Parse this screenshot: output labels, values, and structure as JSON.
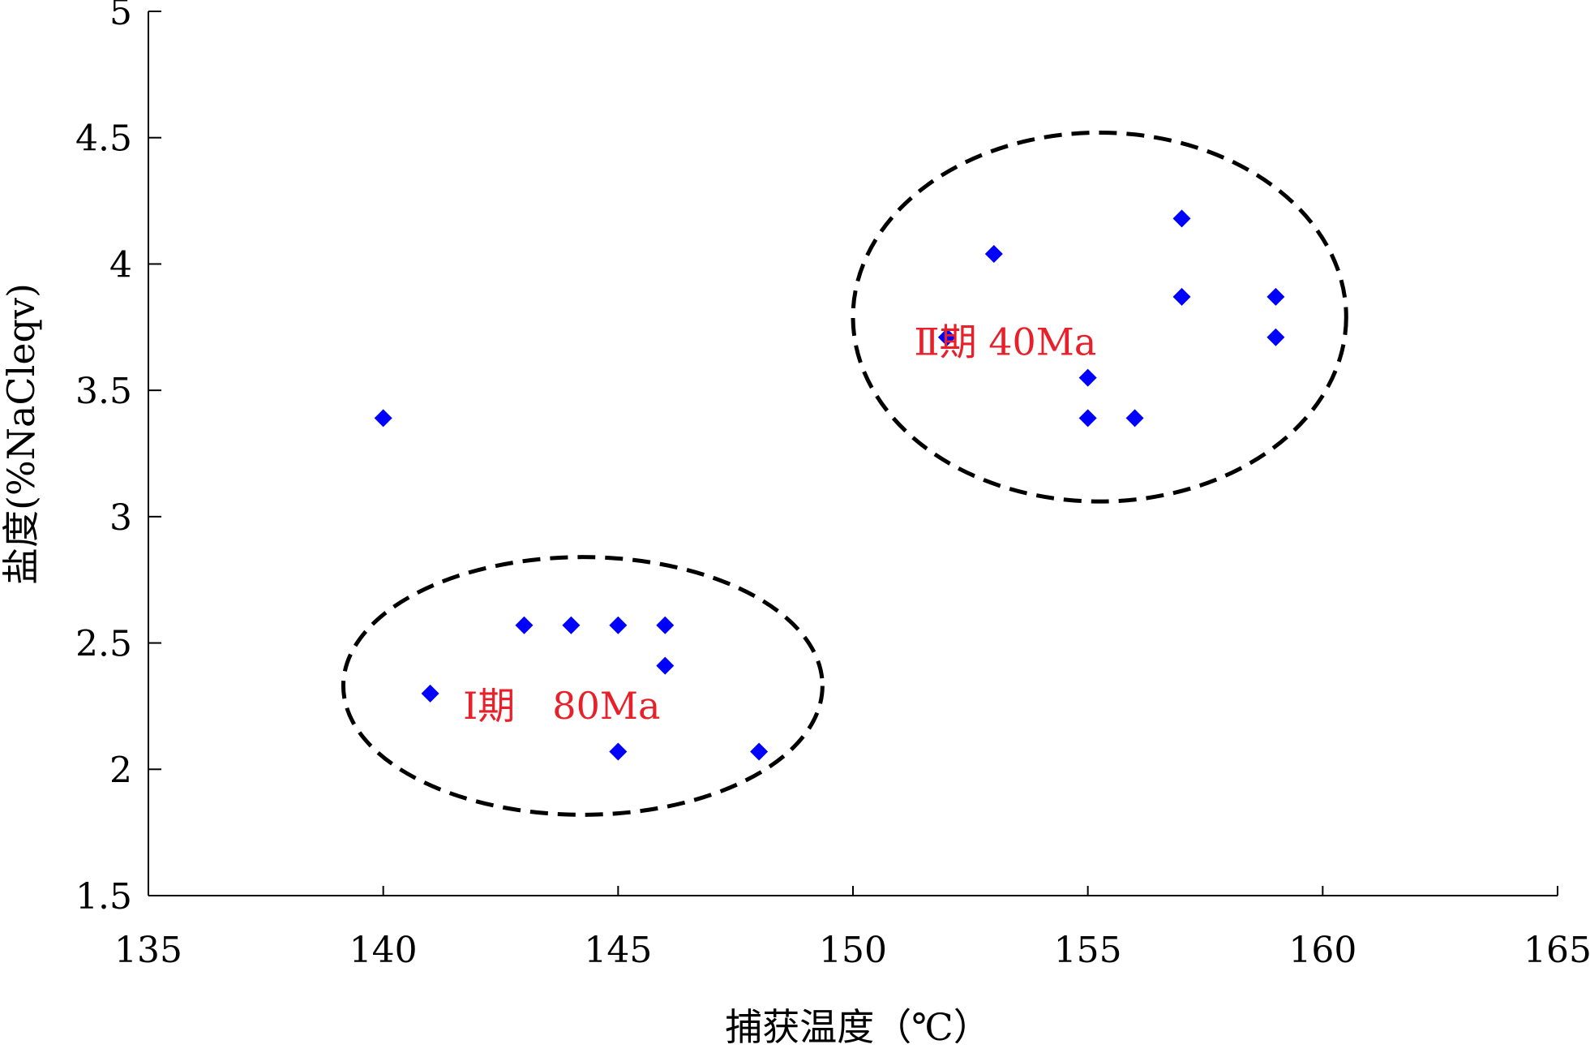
{
  "chart_data": {
    "type": "scatter",
    "title": "",
    "xlabel": "捕获温度（℃）",
    "ylabel": "盐度(%NaCleqv)",
    "xlim": [
      135,
      165
    ],
    "ylim": [
      1.5,
      5
    ],
    "xticks": [
      135,
      140,
      145,
      150,
      155,
      160,
      165
    ],
    "yticks": [
      1.5,
      2,
      2.5,
      3,
      3.5,
      4,
      4.5,
      5
    ],
    "xtick_labels": [
      "135",
      "140",
      "145",
      "150",
      "155",
      "160",
      "165"
    ],
    "ytick_labels": [
      "1.5",
      "2",
      "2.5",
      "3",
      "3.5",
      "4",
      "4.5",
      "5"
    ],
    "grid": false,
    "marker": "diamond",
    "marker_color": "#0000ff",
    "annotation_color": "#e8202a",
    "points": [
      {
        "x": 140,
        "y": 3.39
      },
      {
        "x": 141,
        "y": 2.3
      },
      {
        "x": 143,
        "y": 2.57
      },
      {
        "x": 144,
        "y": 2.57
      },
      {
        "x": 145,
        "y": 2.57
      },
      {
        "x": 146,
        "y": 2.57
      },
      {
        "x": 146,
        "y": 2.41
      },
      {
        "x": 145,
        "y": 2.07
      },
      {
        "x": 148,
        "y": 2.07
      },
      {
        "x": 152,
        "y": 3.71
      },
      {
        "x": 153,
        "y": 4.04
      },
      {
        "x": 155,
        "y": 3.55
      },
      {
        "x": 155,
        "y": 3.39
      },
      {
        "x": 156,
        "y": 3.39
      },
      {
        "x": 157,
        "y": 4.18
      },
      {
        "x": 157,
        "y": 3.87
      },
      {
        "x": 159,
        "y": 3.87
      },
      {
        "x": 159,
        "y": 3.71
      }
    ],
    "annotations": [
      {
        "text": "Ⅰ期　80Ma",
        "x": 141.7,
        "y": 2.2
      },
      {
        "text": "Ⅱ期 40Ma",
        "x": 151.3,
        "y": 3.64
      }
    ],
    "groups": [
      {
        "label": "Ⅰ期　80Ma",
        "center": [
          144.25,
          2.33
        ],
        "rx": 5.1,
        "ry": 0.51
      },
      {
        "label": "Ⅱ期 40Ma",
        "center": [
          155.25,
          3.79
        ],
        "rx": 5.25,
        "ry": 0.73
      }
    ]
  }
}
